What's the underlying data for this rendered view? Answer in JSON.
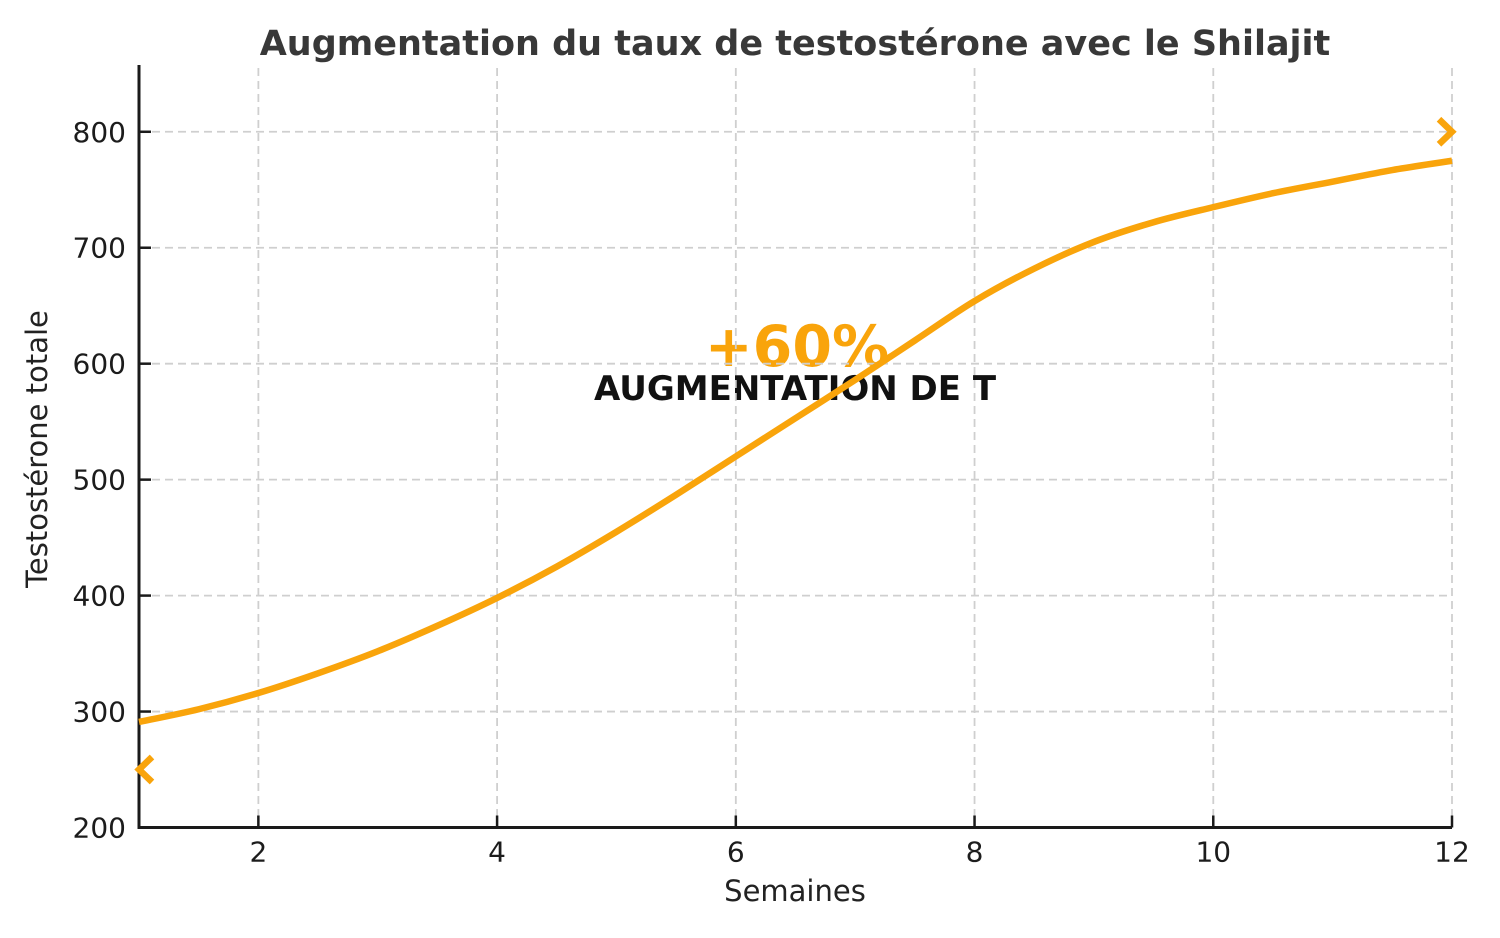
{
  "chart_data": {
    "type": "line",
    "title": "Augmentation du taux de testostérone avec le Shilajit",
    "xlabel": "Semaines",
    "ylabel": "Testostérone totale",
    "xlim": [
      1,
      12
    ],
    "ylim": [
      200,
      855
    ],
    "x_ticks": [
      2,
      4,
      6,
      8,
      10,
      12
    ],
    "y_ticks": [
      200,
      300,
      400,
      500,
      600,
      700,
      800
    ],
    "grid": "dashed",
    "legend": "none",
    "x": [
      1,
      1.5,
      2,
      2.5,
      3,
      3.5,
      4,
      4.5,
      5,
      5.5,
      6,
      6.5,
      7,
      7.5,
      8,
      8.5,
      9,
      9.5,
      10,
      10.5,
      11,
      11.5,
      12
    ],
    "series": [
      {
        "name": "Testostérone totale",
        "values": [
          291,
          302,
          316,
          333,
          352,
          374,
          398,
          425,
          455,
          487,
          520,
          553,
          586,
          620,
          654,
          682,
          705,
          722,
          735,
          747,
          757,
          767,
          775
        ]
      }
    ],
    "annotations": [
      {
        "text": "+60%",
        "x": 6.5,
        "y": 615,
        "color": "#F9A40B"
      },
      {
        "text": "AUGMENTATION DE T",
        "x": 6.5,
        "y": 578,
        "color": "#111111"
      }
    ],
    "markers": [
      {
        "shape": "chevron-left",
        "x": 1,
        "y": 250
      },
      {
        "shape": "chevron-right",
        "x": 12,
        "y": 800
      }
    ],
    "colors": {
      "line": "#F9A40B",
      "annotation_accent": "#F9A40B",
      "annotation_text": "#111111",
      "grid": "#cfcfcf",
      "spine": "#1a1a1a",
      "title": "#383838",
      "tick_label": "#1c1c1c"
    }
  }
}
